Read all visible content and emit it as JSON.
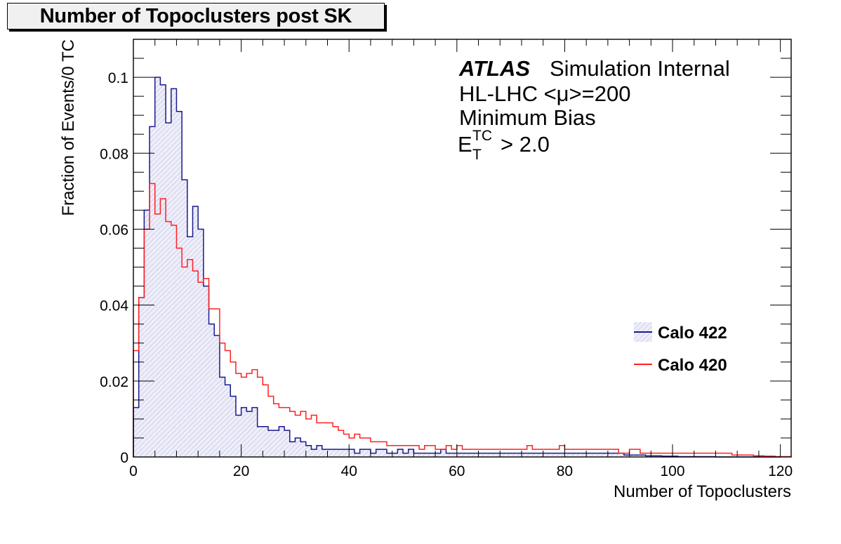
{
  "title": "Number of Topoclusters post SK",
  "annotations": {
    "atlas": "ATLAS",
    "atlas_suffix": "Simulation Internal",
    "line1": "HL-LHC <μ>=200",
    "line2": "Minimum Bias",
    "et_base": "E",
    "et_sup": "TC",
    "et_sub": "T",
    "et_cut": "> 2.0"
  },
  "chart_data": {
    "type": "bar",
    "title": "Number of Topoclusters post SK",
    "xlabel": "Number of Topoclusters",
    "ylabel": "Fraction of Events/0 TC",
    "xlim": [
      0,
      122
    ],
    "ylim": [
      0,
      0.11
    ],
    "x_ticks": [
      0,
      20,
      40,
      60,
      80,
      100,
      120
    ],
    "x_tick_labels": [
      "0",
      "20",
      "40",
      "60",
      "80",
      "100",
      "120"
    ],
    "y_ticks": [
      0,
      0.02,
      0.04,
      0.06,
      0.08,
      0.1
    ],
    "y_tick_labels": [
      "0",
      "0.02",
      "0.04",
      "0.06",
      "0.08",
      "0.1"
    ],
    "bin_edges_start": 0,
    "bin_width": 1,
    "legend_position": "right",
    "series": [
      {
        "name": "Calo 422",
        "color": "#1a1a8c",
        "fill": "hatched light blue",
        "values": [
          0.013,
          0.042,
          0.065,
          0.087,
          0.1,
          0.098,
          0.088,
          0.097,
          0.091,
          0.073,
          0.058,
          0.066,
          0.06,
          0.045,
          0.035,
          0.032,
          0.021,
          0.019,
          0.016,
          0.011,
          0.013,
          0.012,
          0.013,
          0.008,
          0.008,
          0.007,
          0.007,
          0.008,
          0.007,
          0.004,
          0.005,
          0.004,
          0.003,
          0.002,
          0.003,
          0.002,
          0.002,
          0.002,
          0.002,
          0.002,
          0.002,
          0.001,
          0.002,
          0.002,
          0.001,
          0.002,
          0.002,
          0.001,
          0.001,
          0.002,
          0.001,
          0.002,
          0.001,
          0.001,
          0.001,
          0.001,
          0.001,
          0.002,
          0.001,
          0.001,
          0.001,
          0.001,
          0.001,
          0.001,
          0.001,
          0.001,
          0.001,
          0.001,
          0.001,
          0.001,
          0.001,
          0.001,
          0.001,
          0.001,
          0.001,
          0.001,
          0.001,
          0.001,
          0.001,
          0.001,
          0.001,
          0.001,
          0.001,
          0.001,
          0.001,
          0.001,
          0.001,
          0.001,
          0.001,
          0.001,
          0.001,
          0.0005,
          0.0005,
          0.0005,
          0.0005,
          0.0003,
          0.0003,
          0.0003,
          0.0002,
          0.0002,
          0.0002,
          0.0001,
          0.0001,
          0.0001,
          0.0001,
          0.0001,
          0.0001,
          0.0001,
          0.0,
          0.0,
          0.0,
          0.0,
          0.0,
          0.0,
          0.0,
          0.0,
          0.0,
          0.0,
          0.0,
          0.0
        ]
      },
      {
        "name": "Calo 420",
        "color": "#ff2020",
        "values": [
          0.028,
          0.042,
          0.06,
          0.072,
          0.064,
          0.068,
          0.062,
          0.061,
          0.055,
          0.05,
          0.052,
          0.049,
          0.046,
          0.047,
          0.039,
          0.039,
          0.03,
          0.028,
          0.025,
          0.022,
          0.021,
          0.022,
          0.023,
          0.021,
          0.019,
          0.016,
          0.014,
          0.013,
          0.013,
          0.012,
          0.011,
          0.012,
          0.01,
          0.011,
          0.009,
          0.009,
          0.009,
          0.008,
          0.007,
          0.006,
          0.005,
          0.006,
          0.005,
          0.005,
          0.004,
          0.004,
          0.004,
          0.003,
          0.003,
          0.003,
          0.003,
          0.003,
          0.003,
          0.002,
          0.003,
          0.003,
          0.002,
          0.002,
          0.003,
          0.002,
          0.003,
          0.002,
          0.002,
          0.002,
          0.002,
          0.002,
          0.002,
          0.002,
          0.002,
          0.002,
          0.002,
          0.002,
          0.002,
          0.003,
          0.002,
          0.002,
          0.002,
          0.002,
          0.002,
          0.003,
          0.002,
          0.002,
          0.002,
          0.002,
          0.002,
          0.002,
          0.002,
          0.002,
          0.002,
          0.002,
          0.001,
          0.001,
          0.002,
          0.002,
          0.001,
          0.001,
          0.001,
          0.001,
          0.001,
          0.001,
          0.001,
          0.001,
          0.001,
          0.001,
          0.001,
          0.001,
          0.001,
          0.001,
          0.001,
          0.001,
          0.001,
          0.0005,
          0.0005,
          0.0005,
          0.0005,
          0.0003,
          0.0003,
          0.0002,
          0.0002,
          0.0001,
          0.0001,
          0.0001
        ]
      }
    ]
  }
}
